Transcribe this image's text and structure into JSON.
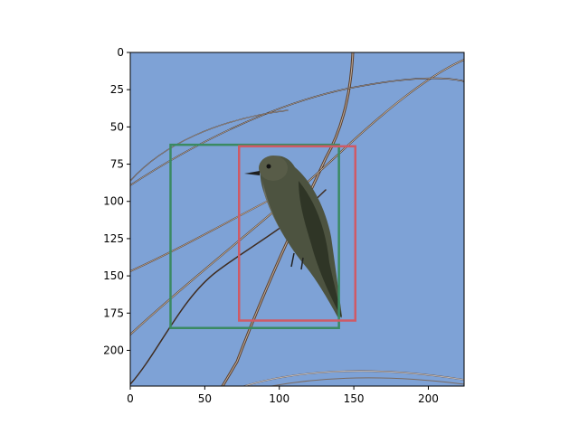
{
  "figure": {
    "image_extent": {
      "x": [
        0,
        224
      ],
      "y": [
        0,
        224
      ]
    },
    "x_ticks": [
      0,
      50,
      100,
      150,
      200
    ],
    "y_ticks": [
      0,
      25,
      50,
      75,
      100,
      125,
      150,
      175,
      200
    ],
    "sky_color": "#7ea2d6",
    "boxes": [
      {
        "color": "#3a8a62",
        "x0": 27,
        "y0": 62,
        "x1": 140,
        "y1": 185
      },
      {
        "color": "#cf5a66",
        "x0": 73,
        "y0": 63,
        "x1": 151,
        "y1": 180
      }
    ]
  }
}
